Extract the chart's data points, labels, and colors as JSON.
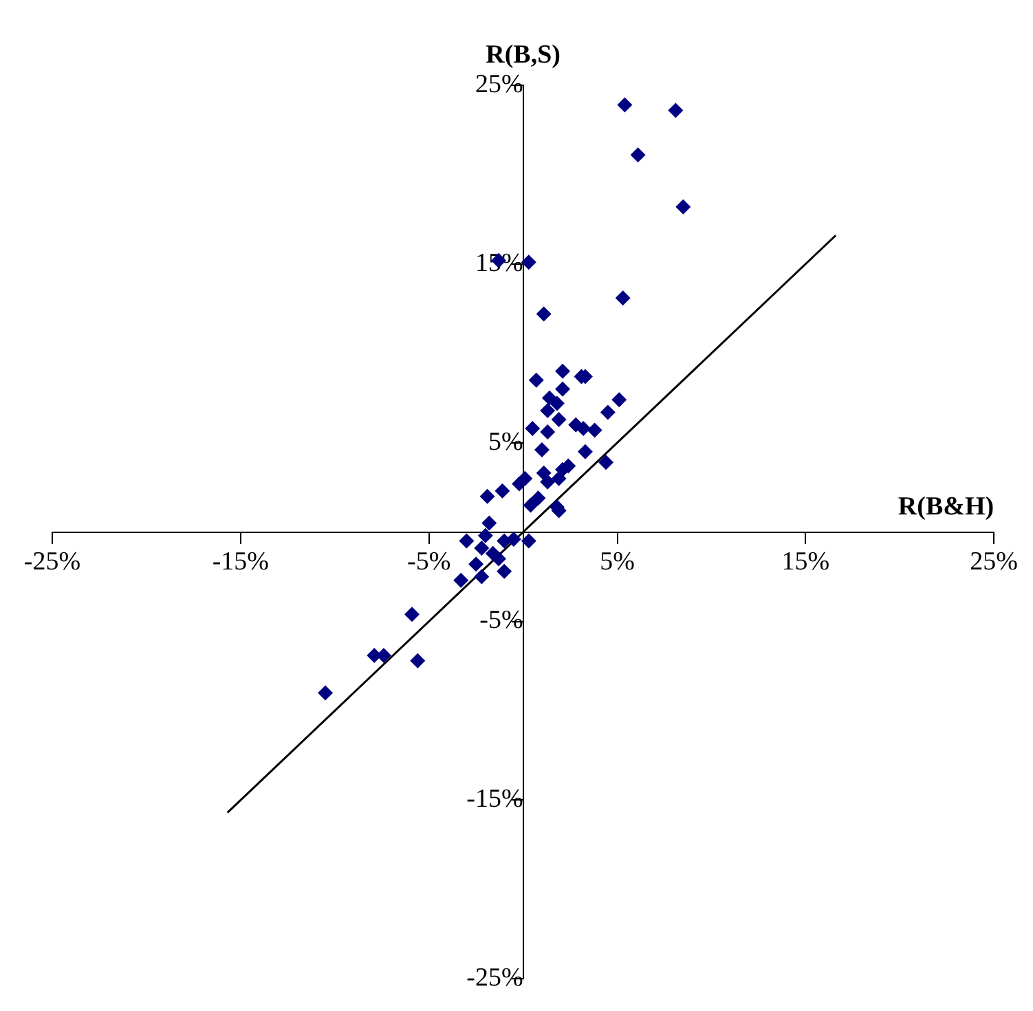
{
  "chart_data": {
    "type": "scatter",
    "xlabel": "R(B&H)",
    "ylabel": "R(B,S)",
    "grid": false,
    "legend": false,
    "xlim": [
      -25,
      25
    ],
    "ylim": [
      -25,
      25
    ],
    "xticks": [
      {
        "value": -25,
        "label": "-25%"
      },
      {
        "value": -15,
        "label": "-15%"
      },
      {
        "value": -5,
        "label": "-5%"
      },
      {
        "value": 5,
        "label": "5%"
      },
      {
        "value": 15,
        "label": "15%"
      },
      {
        "value": 25,
        "label": "25%"
      }
    ],
    "yticks": [
      {
        "value": -25,
        "label": "-25%"
      },
      {
        "value": -15,
        "label": "-15%"
      },
      {
        "value": -5,
        "label": "-5%"
      },
      {
        "value": 5,
        "label": "5%"
      },
      {
        "value": 15,
        "label": "15%"
      },
      {
        "value": 25,
        "label": "25%"
      }
    ],
    "series": [
      {
        "type": "scatter",
        "marker": "diamond",
        "color": "#000080",
        "x": [
          5.4,
          8.1,
          6.1,
          8.5,
          5.3,
          -1.3,
          0.3,
          1.1,
          0.7,
          2.1,
          3.1,
          3.3,
          2.1,
          1.4,
          1.8,
          1.3,
          1.9,
          5.1,
          4.5,
          0.5,
          1.3,
          2.8,
          3.2,
          3.8,
          1.0,
          3.3,
          4.4,
          1.1,
          2.4,
          2.1,
          1.9,
          1.3,
          0.1,
          -0.2,
          -1.9,
          -1.1,
          0.8,
          0.4,
          1.8,
          1.9,
          -1.8,
          0.3,
          -3.0,
          -2.0,
          -2.2,
          -1.6,
          -1.0,
          -0.5,
          -1.3,
          -2.5,
          -1.0,
          -2.2,
          -3.3,
          -5.9,
          -7.9,
          -7.4,
          -5.6,
          -10.5
        ],
        "values": [
          23.9,
          23.6,
          21.1,
          18.2,
          13.1,
          15.2,
          15.1,
          12.2,
          8.5,
          9.0,
          8.7,
          8.7,
          8.0,
          7.5,
          7.2,
          6.8,
          6.3,
          7.4,
          6.7,
          5.8,
          5.6,
          6.0,
          5.8,
          5.7,
          4.6,
          4.5,
          3.9,
          3.3,
          3.7,
          3.5,
          3.0,
          2.8,
          3.0,
          2.7,
          2.0,
          2.3,
          1.9,
          1.5,
          1.4,
          1.2,
          0.5,
          -0.5,
          -0.5,
          -0.2,
          -0.9,
          -1.2,
          -0.5,
          -0.4,
          -1.5,
          -1.8,
          -2.2,
          -2.5,
          -2.7,
          -4.6,
          -6.9,
          -6.9,
          -7.2,
          -9.0
        ]
      },
      {
        "type": "line",
        "color": "#000000",
        "x": [
          -15.7,
          16.6
        ],
        "values": [
          -15.7,
          16.6
        ]
      }
    ]
  }
}
